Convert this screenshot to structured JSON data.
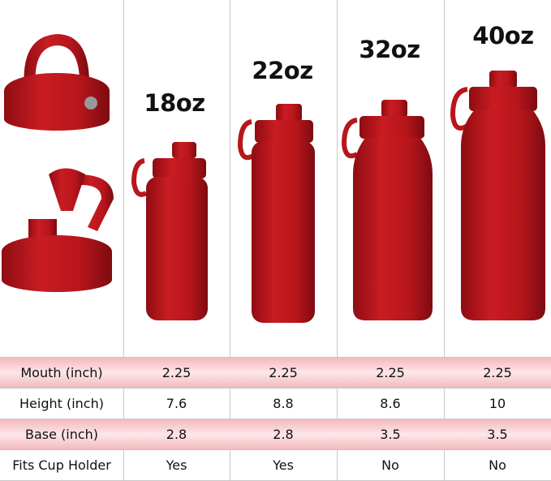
{
  "colors": {
    "bottle": "#b8161c",
    "row_highlight": "#f3b9be"
  },
  "sizes": [
    "18oz",
    "22oz",
    "32oz",
    "40oz"
  ],
  "table": {
    "rows": [
      {
        "label": "Mouth (inch)",
        "values": [
          "2.25",
          "2.25",
          "2.25",
          "2.25"
        ]
      },
      {
        "label": "Height (inch)",
        "values": [
          "7.6",
          "8.8",
          "8.6",
          "10"
        ]
      },
      {
        "label": "Base (inch)",
        "values": [
          "2.8",
          "2.8",
          "3.5",
          "3.5"
        ]
      },
      {
        "label": "Fits Cup Holder",
        "values": [
          "Yes",
          "Yes",
          "No",
          "No"
        ]
      }
    ]
  }
}
